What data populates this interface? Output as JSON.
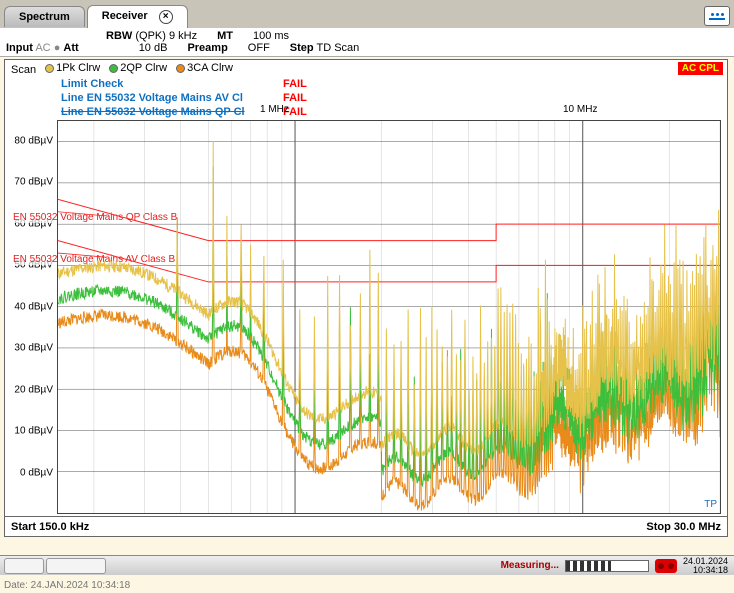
{
  "tabs": {
    "spectrum": "Spectrum",
    "receiver": "Receiver"
  },
  "top_icon": "display-layout-icon",
  "params_row1": {
    "rbw_label": "RBW",
    "rbw_value": "(QPK) 9 kHz",
    "mt_label": "MT",
    "mt_value": "100 ms"
  },
  "params_row2": {
    "input_label": "Input",
    "ac": "AC",
    "att_label": "Att",
    "att_value": "10 dB",
    "preamp_label": "Preamp",
    "preamp_value": "OFF",
    "step_label": "Step",
    "step_value": "TD Scan"
  },
  "trace_legend": {
    "scan": "Scan",
    "t1": "1Pk Clrw",
    "t1_color": "#e6c24a",
    "t2": "2QP Clrw",
    "t2_color": "#3cbf3c",
    "t3": "3CA Clrw",
    "t3_color": "#e88b1a"
  },
  "badge": "AC CPL",
  "annotations": {
    "limit_check": "Limit Check",
    "line1": "Line EN 55032 Voltage Mains AV Cl",
    "line2": "Line EN 55032 Voltage Mains QP Cl",
    "fail": "FAIL"
  },
  "freq_labels": {
    "mhz1": "1 MHz",
    "mhz10": "10 MHz"
  },
  "limit_labels": {
    "qp": "EN 55032 Voltage Mains QP Class B",
    "av": "EN 55032 Voltage Mains AV Class B"
  },
  "tp": "TP",
  "startstop": {
    "start": "Start 150.0 kHz",
    "stop": "Stop 30.0 MHz"
  },
  "statusbar": {
    "measuring": "Measuring...",
    "date": "24.01.2024",
    "time": "10:34:18"
  },
  "footer": "Date: 24.JAN.2024  10:34:18",
  "chart": {
    "type": "line-spectrum",
    "x_log": true,
    "x_start_khz": 150.0,
    "x_stop_mhz": 30.0,
    "ylim": [
      -10,
      85
    ],
    "ytick_step": 10,
    "yticks": [
      0,
      10,
      20,
      30,
      40,
      50,
      60,
      70,
      80
    ],
    "y_unit": "dBµV",
    "background_color": "#ffffff",
    "grid_color_major": "#555555",
    "grid_color_minor": "#cccccc",
    "limit_color": "#ff2020",
    "limit_qp": {
      "segments": [
        {
          "f_khz": 150,
          "v": 66
        },
        {
          "f_khz": 500,
          "v": 56
        },
        {
          "f_khz": 500.01,
          "v": 56
        },
        {
          "f_mhz": 5,
          "v": 56
        },
        {
          "f_mhz": 5.0001,
          "v": 60
        },
        {
          "f_mhz": 30,
          "v": 60
        }
      ]
    },
    "limit_av": {
      "segments": [
        {
          "f_khz": 150,
          "v": 56
        },
        {
          "f_khz": 500,
          "v": 46
        },
        {
          "f_khz": 500.01,
          "v": 46
        },
        {
          "f_mhz": 5,
          "v": 46
        },
        {
          "f_mhz": 5.0001,
          "v": 50
        },
        {
          "f_mhz": 30,
          "v": 50
        }
      ]
    },
    "traces": {
      "t1_color": "#e6c24a",
      "t2_color": "#3cbf3c",
      "t3_color": "#e88b1a",
      "line_width": 1
    }
  }
}
